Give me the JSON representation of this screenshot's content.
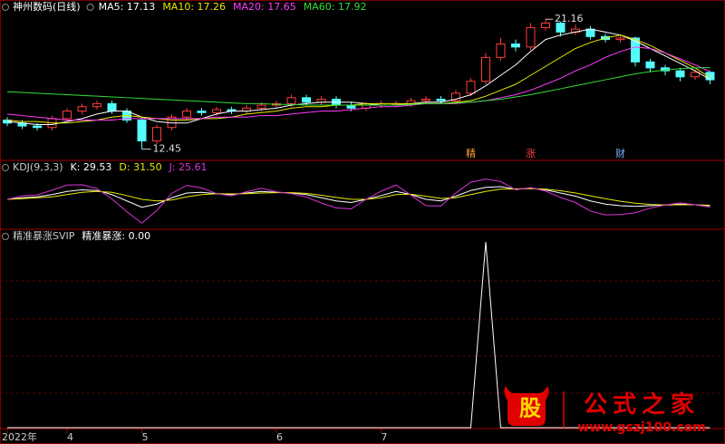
{
  "chart_data": [
    {
      "type": "candlestick",
      "title": "神州数码(日线)",
      "title_color": "#ffffff",
      "up_color": "#ff3c3c",
      "down_color": "#54fcfc",
      "categories": [
        "2022年",
        null,
        null,
        null,
        "4",
        null,
        null,
        null,
        null,
        "5",
        null,
        null,
        null,
        null,
        null,
        null,
        null,
        null,
        "6",
        null,
        null,
        null,
        null,
        null,
        null,
        "7",
        null,
        null,
        null,
        null,
        null,
        null,
        null,
        null,
        null,
        null,
        null,
        null,
        null,
        null,
        null,
        null,
        null,
        null,
        null,
        null,
        null,
        null
      ],
      "open": [
        14.4,
        14.2,
        14.0,
        13.9,
        14.5,
        15.0,
        15.3,
        15.5,
        15.0,
        14.4,
        13.0,
        13.9,
        14.6,
        15.0,
        14.9,
        15.1,
        15.0,
        15.2,
        15.4,
        15.5,
        15.9,
        15.6,
        15.8,
        15.4,
        15.2,
        15.4,
        15.5,
        15.5,
        15.7,
        15.8,
        15.7,
        16.2,
        17.0,
        18.6,
        19.5,
        19.3,
        20.6,
        20.9,
        20.3,
        20.5,
        20.0,
        19.8,
        19.9,
        18.3,
        17.9,
        17.7,
        17.3,
        17.6
      ],
      "high": [
        14.6,
        14.4,
        14.2,
        14.7,
        15.2,
        15.5,
        15.7,
        15.7,
        15.2,
        14.6,
        14.1,
        14.8,
        15.2,
        15.2,
        15.3,
        15.3,
        15.4,
        15.6,
        15.7,
        16.1,
        16.1,
        16.0,
        16.0,
        15.6,
        15.6,
        15.7,
        15.7,
        15.9,
        16.0,
        16.0,
        16.4,
        17.2,
        18.9,
        19.9,
        19.8,
        20.9,
        21.16,
        21.0,
        20.8,
        20.7,
        20.2,
        20.1,
        20.0,
        18.5,
        18.1,
        17.9,
        17.8,
        17.7
      ],
      "low": [
        14.0,
        13.8,
        13.7,
        13.7,
        14.3,
        14.8,
        15.1,
        14.8,
        14.2,
        12.45,
        12.8,
        13.7,
        14.4,
        14.7,
        14.7,
        14.8,
        14.8,
        15.0,
        15.2,
        15.3,
        15.4,
        15.4,
        15.2,
        15.0,
        15.0,
        15.2,
        15.3,
        15.3,
        15.5,
        15.5,
        15.5,
        16.0,
        16.8,
        18.4,
        19.0,
        19.1,
        20.4,
        20.0,
        20.1,
        19.8,
        19.6,
        19.6,
        18.0,
        17.6,
        17.4,
        17.0,
        17.1,
        16.8
      ],
      "close": [
        14.2,
        14.0,
        13.9,
        14.5,
        15.0,
        15.3,
        15.5,
        15.0,
        14.4,
        13.0,
        13.9,
        14.6,
        15.0,
        14.9,
        15.1,
        15.0,
        15.2,
        15.4,
        15.5,
        15.9,
        15.6,
        15.8,
        15.4,
        15.2,
        15.4,
        15.5,
        15.5,
        15.7,
        15.8,
        15.7,
        16.2,
        17.0,
        18.6,
        19.5,
        19.3,
        20.6,
        20.9,
        20.3,
        20.5,
        20.0,
        19.8,
        19.9,
        18.3,
        17.9,
        17.7,
        17.3,
        17.6,
        17.1
      ],
      "series": [
        {
          "name": "MA5: 17.13",
          "color": "#ffffff",
          "values": [
            14.3,
            14.2,
            14.1,
            14.1,
            14.3,
            14.5,
            14.8,
            15.0,
            15.0,
            14.6,
            14.3,
            14.2,
            14.2,
            14.5,
            14.8,
            15.0,
            15.0,
            15.1,
            15.2,
            15.4,
            15.5,
            15.6,
            15.6,
            15.6,
            15.5,
            15.4,
            15.4,
            15.5,
            15.6,
            15.6,
            15.8,
            16.1,
            16.7,
            17.4,
            18.1,
            19.0,
            19.8,
            20.1,
            20.3,
            20.5,
            20.3,
            20.1,
            19.7,
            19.2,
            18.7,
            18.2,
            17.7,
            17.13
          ]
        },
        {
          "name": "MA10: 17.26",
          "color": "#e8e800",
          "values": [
            14.4,
            14.3,
            14.3,
            14.2,
            14.2,
            14.3,
            14.4,
            14.6,
            14.7,
            14.6,
            14.5,
            14.4,
            14.4,
            14.5,
            14.5,
            14.6,
            14.8,
            14.9,
            15.0,
            15.2,
            15.3,
            15.3,
            15.4,
            15.4,
            15.5,
            15.5,
            15.5,
            15.5,
            15.5,
            15.5,
            15.6,
            15.7,
            16.0,
            16.4,
            16.8,
            17.4,
            18.0,
            18.6,
            19.2,
            19.6,
            19.9,
            20.1,
            19.8,
            19.4,
            18.9,
            18.4,
            17.9,
            17.26
          ]
        },
        {
          "name": "MA20: 17.65",
          "color": "#ff3cff",
          "values": [
            14.8,
            14.7,
            14.6,
            14.5,
            14.4,
            14.4,
            14.4,
            14.4,
            14.5,
            14.5,
            14.5,
            14.5,
            14.5,
            14.5,
            14.6,
            14.6,
            14.6,
            14.7,
            14.7,
            14.8,
            14.9,
            15.0,
            15.0,
            15.1,
            15.2,
            15.3,
            15.3,
            15.4,
            15.5,
            15.5,
            15.5,
            15.6,
            15.7,
            15.9,
            16.1,
            16.4,
            16.8,
            17.2,
            17.7,
            18.1,
            18.6,
            19.0,
            19.3,
            19.2,
            18.9,
            18.5,
            18.1,
            17.65
          ]
        },
        {
          "name": "MA60: 17.92",
          "color": "#33dd33",
          "values": [
            16.3,
            16.25,
            16.2,
            16.15,
            16.1,
            16.05,
            16.0,
            15.95,
            15.9,
            15.85,
            15.8,
            15.75,
            15.7,
            15.65,
            15.6,
            15.55,
            15.5,
            15.5,
            15.45,
            15.45,
            15.4,
            15.4,
            15.4,
            15.4,
            15.4,
            15.4,
            15.4,
            15.45,
            15.5,
            15.5,
            15.55,
            15.6,
            15.7,
            15.8,
            15.95,
            16.1,
            16.3,
            16.5,
            16.7,
            16.9,
            17.1,
            17.3,
            17.5,
            17.65,
            17.75,
            17.85,
            17.9,
            17.92
          ]
        }
      ],
      "signals": [
        null,
        null,
        null,
        null,
        null,
        null,
        null,
        null,
        null,
        null,
        null,
        null,
        null,
        null,
        null,
        null,
        null,
        null,
        null,
        null,
        null,
        null,
        null,
        null,
        null,
        null,
        null,
        null,
        null,
        null,
        null,
        "精",
        null,
        null,
        null,
        "涨",
        null,
        null,
        null,
        null,
        null,
        "财",
        null,
        null,
        null,
        null,
        null,
        null
      ],
      "ylim": [
        12.0,
        21.6
      ]
    },
    {
      "type": "line",
      "title": "KDJ(9,3,3)",
      "title_color": "#c8c8c8",
      "series": [
        {
          "name": "K: 29.53",
          "color": "#ffffff",
          "values": [
            50,
            55,
            58,
            65,
            75,
            80,
            78,
            65,
            45,
            25,
            35,
            55,
            70,
            72,
            68,
            65,
            70,
            75,
            72,
            70,
            65,
            55,
            45,
            40,
            50,
            62,
            75,
            65,
            50,
            45,
            60,
            78,
            88,
            90,
            82,
            85,
            80,
            70,
            60,
            45,
            35,
            30,
            28,
            30,
            32,
            35,
            33,
            29.53
          ]
        },
        {
          "name": "D: 31.50",
          "color": "#e8e800",
          "values": [
            50,
            52,
            55,
            58,
            65,
            72,
            75,
            72,
            62,
            50,
            45,
            48,
            58,
            65,
            68,
            67,
            68,
            70,
            71,
            71,
            69,
            63,
            56,
            50,
            50,
            55,
            65,
            66,
            60,
            53,
            55,
            65,
            75,
            82,
            83,
            84,
            82,
            77,
            70,
            61,
            52,
            44,
            38,
            34,
            32,
            33,
            33,
            31.5
          ]
        },
        {
          "name": "J: 25.61",
          "color": "#dd33dd",
          "values": [
            50,
            61,
            64,
            79,
            95,
            96,
            84,
            51,
            11,
            -25,
            15,
            69,
            94,
            86,
            68,
            61,
            74,
            85,
            74,
            68,
            57,
            39,
            23,
            20,
            50,
            76,
            95,
            63,
            30,
            29,
            70,
            104,
            114,
            106,
            80,
            87,
            76,
            56,
            40,
            13,
            1,
            2,
            8,
            22,
            32,
            39,
            33,
            25.61
          ]
        }
      ],
      "ylim": [
        -30,
        130
      ]
    },
    {
      "type": "line",
      "title": "精准暴涨SVIP",
      "title_color": "#c8c8c8",
      "series": [
        {
          "name": "精准暴涨: 0.00",
          "color": "#ffffff",
          "values": [
            0,
            0,
            0,
            0,
            0,
            0,
            0,
            0,
            0,
            0,
            0,
            0,
            0,
            0,
            0,
            0,
            0,
            0,
            0,
            0,
            0,
            0,
            0,
            0,
            0,
            0,
            0,
            0,
            0,
            0,
            0,
            0,
            1,
            0,
            0,
            0,
            0,
            0,
            0,
            0,
            0,
            0,
            0,
            0,
            0,
            0,
            0,
            0
          ]
        }
      ],
      "ylim": [
        0,
        1
      ]
    }
  ],
  "watermark": {
    "logo": "股",
    "name": "公式之家",
    "url": "www.gszj100.com"
  }
}
